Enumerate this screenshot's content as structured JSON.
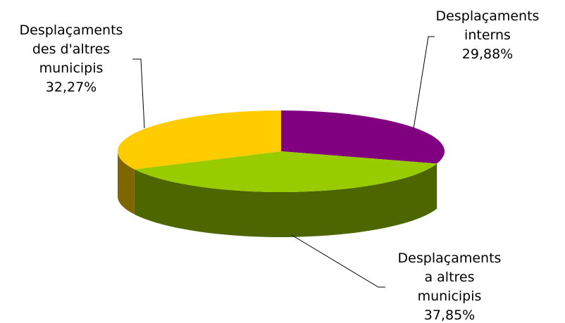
{
  "chart_data": {
    "type": "pie",
    "style": "3d",
    "title": "",
    "slices": [
      {
        "name": "Desplaçaments interns",
        "label_lines": [
          "Desplaçaments",
          "interns"
        ],
        "value": 29.88,
        "value_label": "29,88%",
        "color": "#800080",
        "side_color": "#400040"
      },
      {
        "name": "Desplaçaments a altres municipis",
        "label_lines": [
          "Desplaçaments",
          "a altres",
          "municipis"
        ],
        "value": 37.85,
        "value_label": "37,85%",
        "color": "#99CC00",
        "side_color": "#4D6600"
      },
      {
        "name": "Desplaçaments des d'altres municipis",
        "label_lines": [
          "Desplaçaments",
          "des d'altres",
          "municipis"
        ],
        "value": 32.27,
        "value_label": "32,27%",
        "color": "#FFCC00",
        "side_color": "#806600"
      }
    ],
    "legend": "none",
    "data_labels": "outside-with-leader-lines"
  }
}
